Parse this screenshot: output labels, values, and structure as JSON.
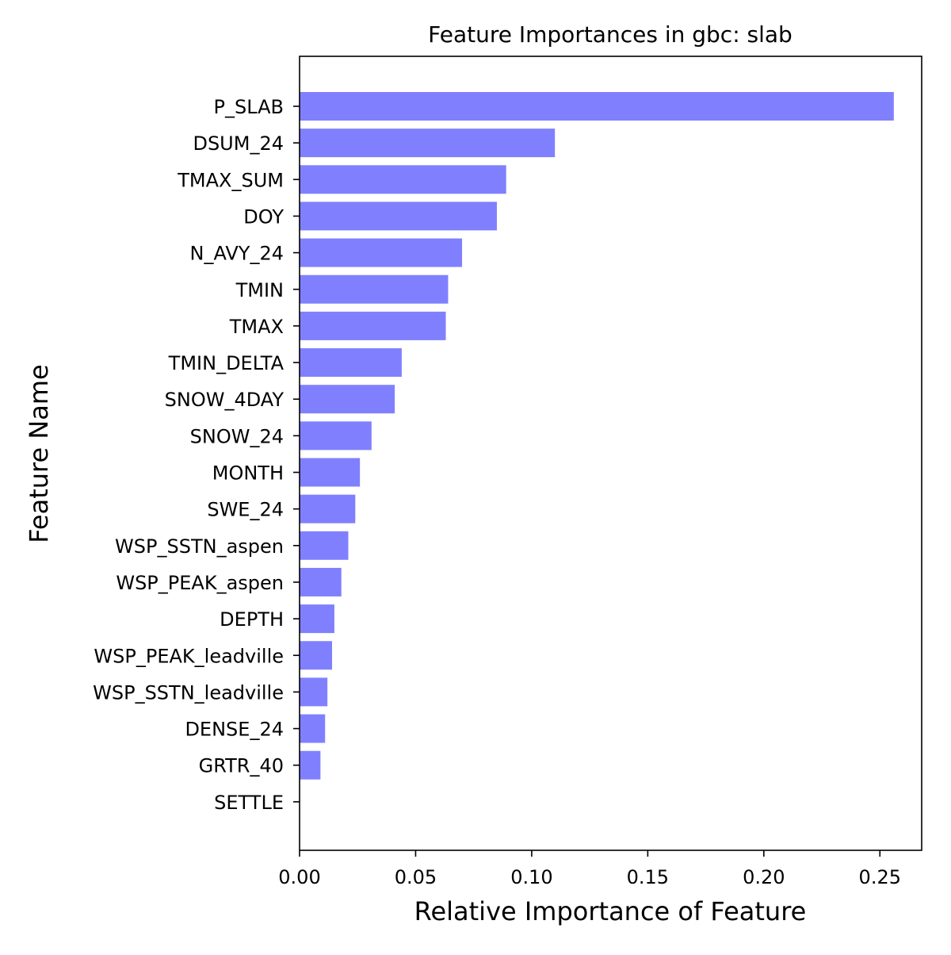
{
  "chart_data": {
    "type": "bar",
    "orientation": "horizontal",
    "title": "Feature Importances in gbc: slab",
    "xlabel": "Relative Importance of Feature",
    "ylabel": "Feature Name",
    "xlim": [
      0,
      0.268
    ],
    "xticks": [
      0.0,
      0.05,
      0.1,
      0.15,
      0.2,
      0.25
    ],
    "xtick_labels": [
      "0.00",
      "0.05",
      "0.10",
      "0.15",
      "0.20",
      "0.25"
    ],
    "grid": false,
    "bar_color": "#8080ff",
    "categories": [
      "P_SLAB",
      "DSUM_24",
      "TMAX_SUM",
      "DOY",
      "N_AVY_24",
      "TMIN",
      "TMAX",
      "TMIN_DELTA",
      "SNOW_4DAY",
      "SNOW_24",
      "MONTH",
      "SWE_24",
      "WSP_SSTN_aspen",
      "WSP_PEAK_aspen",
      "DEPTH",
      "WSP_PEAK_leadville",
      "WSP_SSTN_leadville",
      "DENSE_24",
      "GRTR_40",
      "SETTLE"
    ],
    "values": [
      0.256,
      0.11,
      0.089,
      0.085,
      0.07,
      0.064,
      0.063,
      0.044,
      0.041,
      0.031,
      0.026,
      0.024,
      0.021,
      0.018,
      0.015,
      0.014,
      0.012,
      0.011,
      0.009,
      0.0
    ]
  }
}
